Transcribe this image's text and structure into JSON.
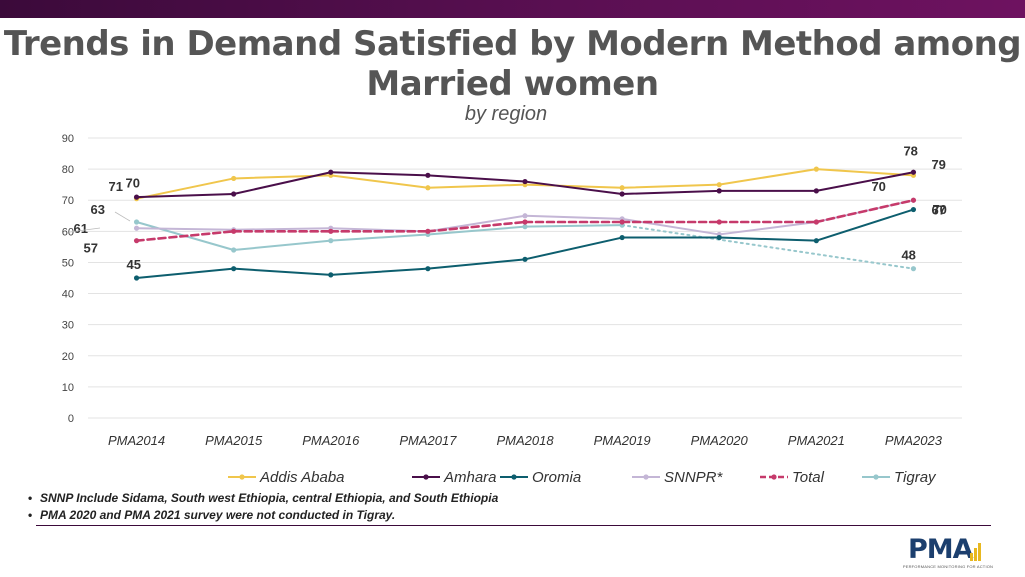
{
  "header": {
    "title_line1": "Trends in Demand Satisfied by Modern Method among",
    "title_line2": "Married women",
    "subtitle": "by region"
  },
  "chart_data": {
    "type": "line",
    "title": "Trends in Demand Satisfied by Modern Method among Married women",
    "subtitle": "by region",
    "xlabel": "",
    "ylabel": "",
    "ylim": [
      0,
      90
    ],
    "yticks": [
      0,
      10,
      20,
      30,
      40,
      50,
      60,
      70,
      80,
      90
    ],
    "grid": true,
    "legend_position": "bottom",
    "categories": [
      "PMA2014",
      "PMA2015",
      "PMA2016",
      "PMA2017",
      "PMA2018",
      "PMA2019",
      "PMA2020",
      "PMA2021",
      "PMA2023"
    ],
    "series": [
      {
        "name": "Addis Ababa",
        "color": "#f0c64c",
        "dash": "solid",
        "values": [
          70.5,
          77,
          78,
          74,
          75,
          74,
          75,
          80,
          78
        ]
      },
      {
        "name": "Amhara",
        "color": "#4a0f4a",
        "dash": "solid",
        "values": [
          71,
          72,
          79,
          78,
          76,
          72,
          73,
          73,
          79
        ]
      },
      {
        "name": "Oromia",
        "color": "#0d5e6e",
        "dash": "solid",
        "values": [
          45,
          48,
          46,
          48,
          51,
          58,
          58,
          57,
          67
        ]
      },
      {
        "name": "SNNPR*",
        "color": "#c4b6d6",
        "dash": "solid",
        "values": [
          61,
          60.5,
          61,
          60,
          65,
          64,
          59,
          63,
          70
        ]
      },
      {
        "name": "Total",
        "color": "#c63a6b",
        "dash": "dashed",
        "values": [
          57,
          60,
          60,
          60,
          63,
          63,
          63,
          63,
          70
        ]
      },
      {
        "name": "Tigray",
        "color": "#97c7cc",
        "dash": "solid",
        "values": [
          63,
          54,
          57,
          59,
          61.5,
          62,
          null,
          null,
          48
        ],
        "gap_bridge": "dotted"
      }
    ],
    "data_labels": [
      {
        "series": "Amhara",
        "category": "PMA2014",
        "text": "71"
      },
      {
        "series": "Addis Ababa",
        "category": "PMA2014",
        "text": "70"
      },
      {
        "series": "Tigray",
        "category": "PMA2014",
        "text": "63"
      },
      {
        "series": "SNNPR*",
        "category": "PMA2014",
        "text": "61"
      },
      {
        "series": "Total",
        "category": "PMA2014",
        "text": "57"
      },
      {
        "series": "Oromia",
        "category": "PMA2014",
        "text": "45"
      },
      {
        "series": "Addis Ababa",
        "category": "PMA2023",
        "text": "78"
      },
      {
        "series": "Amhara",
        "category": "PMA2023",
        "text": "79"
      },
      {
        "series": "Total",
        "category": "PMA2023",
        "text": "70"
      },
      {
        "series": "SNNPR*",
        "category": "PMA2023",
        "text": "70"
      },
      {
        "series": "Oromia",
        "category": "PMA2023",
        "text": "67"
      },
      {
        "series": "Tigray",
        "category": "PMA2023",
        "text": "48"
      }
    ]
  },
  "notes": [
    "SNNP Include Sidama, South west Ethiopia, central Ethiopia, and South Ethiopia",
    "PMA 2020 and PMA 2021 survey were not conducted in Tigray."
  ],
  "logo": {
    "text": "PMA",
    "tagline": "PERFORMANCE MONITORING FOR ACTION",
    "bar_color": "#e8b820",
    "text_color": "#1c3f6e"
  }
}
